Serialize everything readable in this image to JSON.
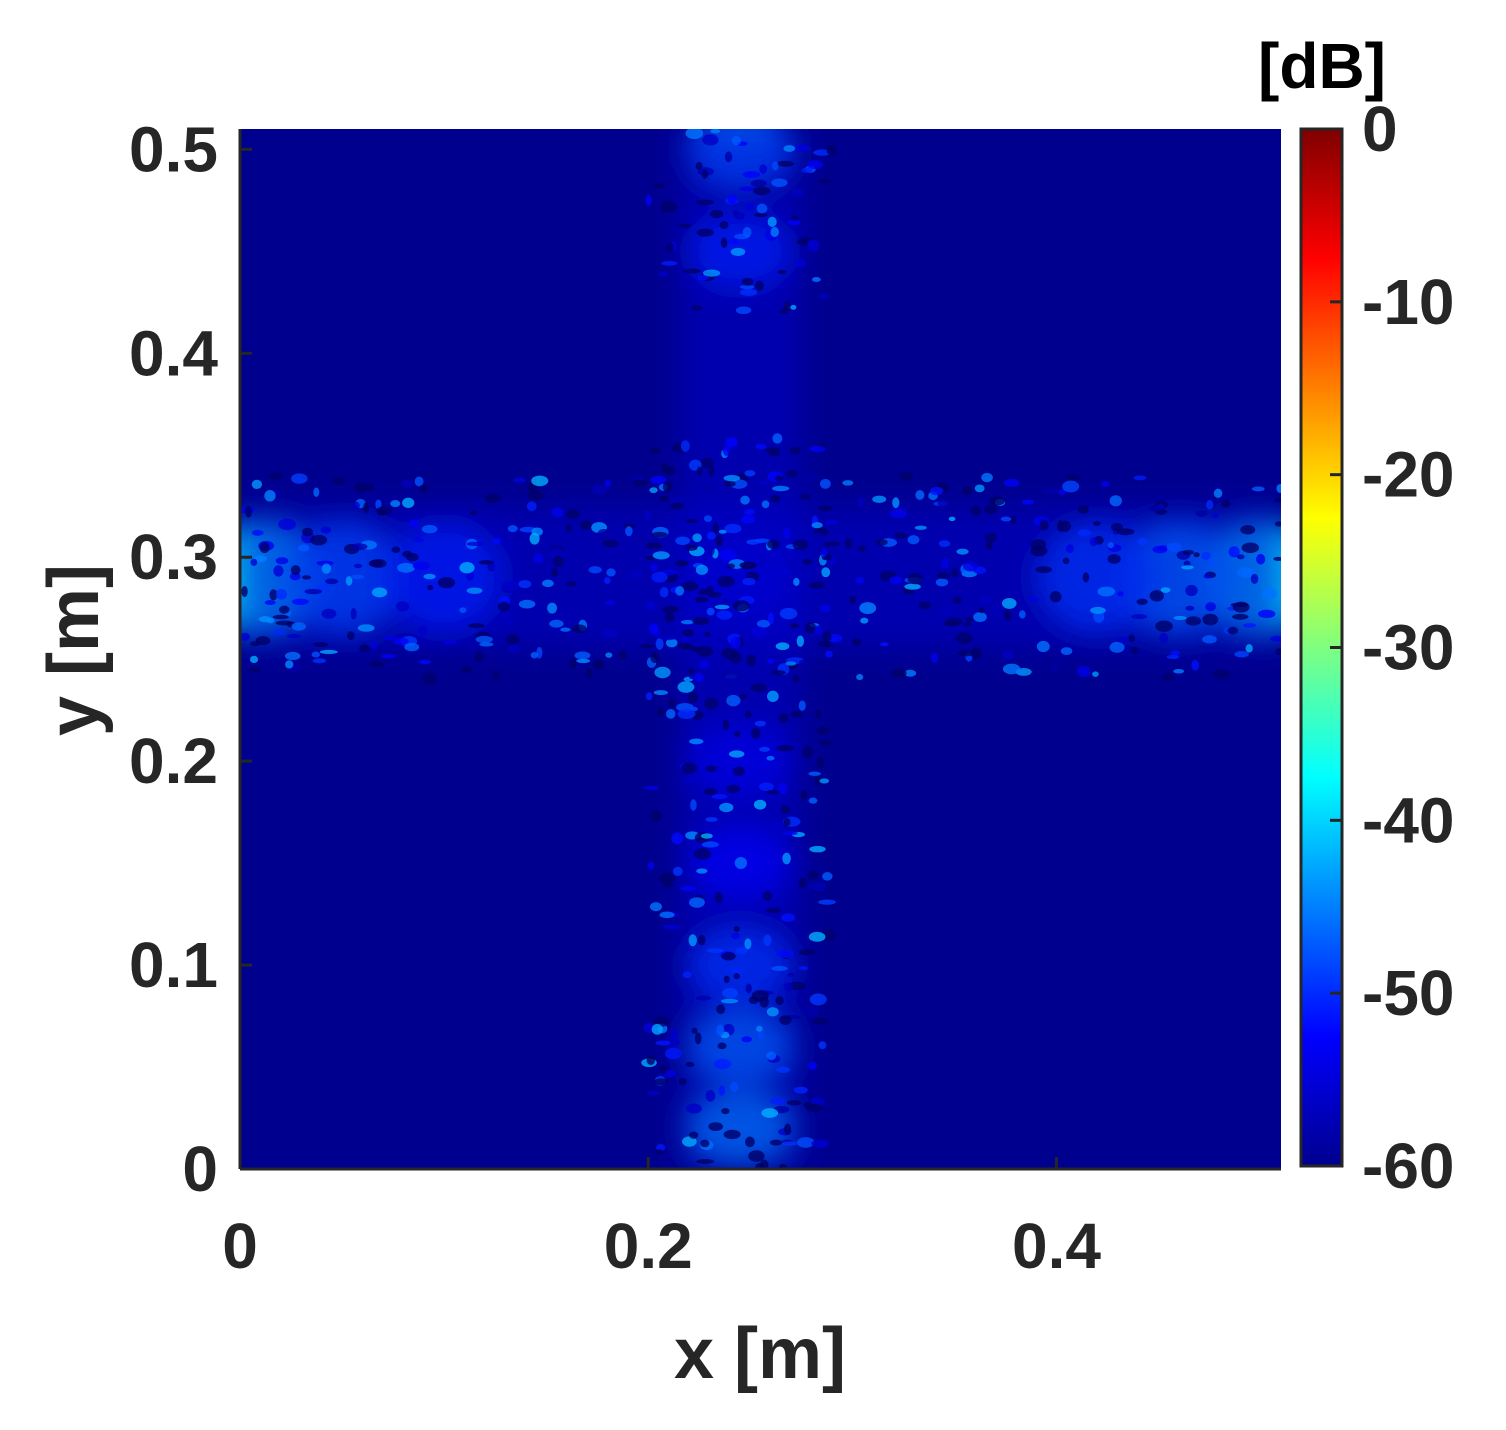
{
  "chart_data": {
    "type": "heatmap",
    "title": "",
    "xlabel": "x [m]",
    "ylabel": "y [m]",
    "xlim": [
      0,
      0.51
    ],
    "ylim": [
      0,
      0.51
    ],
    "x_ticks": [
      {
        "value": 0,
        "label": "0"
      },
      {
        "value": 0.2,
        "label": "0.2"
      },
      {
        "value": 0.4,
        "label": "0.4"
      }
    ],
    "y_ticks": [
      {
        "value": 0,
        "label": "0"
      },
      {
        "value": 0.1,
        "label": "0.1"
      },
      {
        "value": 0.2,
        "label": "0.2"
      },
      {
        "value": 0.3,
        "label": "0.3"
      },
      {
        "value": 0.4,
        "label": "0.4"
      },
      {
        "value": 0.5,
        "label": "0.5"
      }
    ],
    "colormap": "jet",
    "colorbar": {
      "title": "[dB]",
      "range": [
        -60,
        0
      ],
      "ticks": [
        {
          "value": 0,
          "label": "0"
        },
        {
          "value": -10,
          "label": "-10"
        },
        {
          "value": -20,
          "label": "-20"
        },
        {
          "value": -30,
          "label": "-30"
        },
        {
          "value": -40,
          "label": "-40"
        },
        {
          "value": -50,
          "label": "-50"
        },
        {
          "value": -60,
          "label": "-60"
        }
      ]
    },
    "background_level_db": -60,
    "hotspots": [
      {
        "x": 0.245,
        "y": 0.02,
        "db": -42
      },
      {
        "x": 0.245,
        "y": 0.06,
        "db": -44
      },
      {
        "x": 0.245,
        "y": 0.1,
        "db": -48
      },
      {
        "x": 0.245,
        "y": 0.15,
        "db": -52
      },
      {
        "x": 0.245,
        "y": 0.2,
        "db": -54
      },
      {
        "x": 0.245,
        "y": 0.45,
        "db": -50
      },
      {
        "x": 0.245,
        "y": 0.5,
        "db": -46
      },
      {
        "x": 0.01,
        "y": 0.29,
        "db": -40
      },
      {
        "x": 0.05,
        "y": 0.29,
        "db": -46
      },
      {
        "x": 0.1,
        "y": 0.29,
        "db": -50
      },
      {
        "x": 0.5,
        "y": 0.29,
        "db": -40
      },
      {
        "x": 0.46,
        "y": 0.29,
        "db": -44
      },
      {
        "x": 0.42,
        "y": 0.29,
        "db": -48
      },
      {
        "x": 0.245,
        "y": 0.29,
        "db": -56
      }
    ]
  }
}
